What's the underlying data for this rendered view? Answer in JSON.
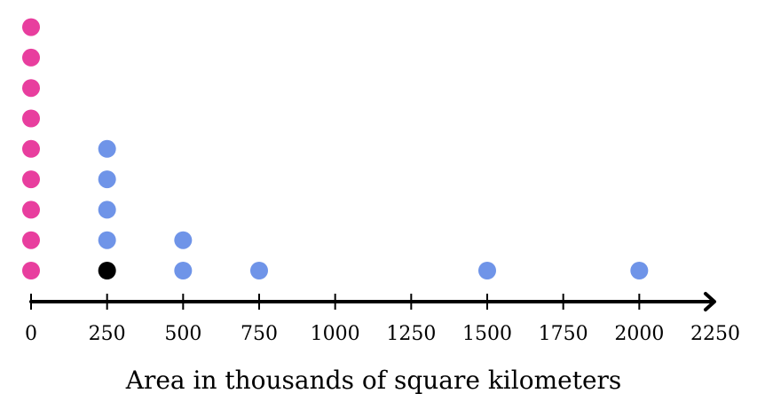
{
  "chart_data": {
    "type": "scatter",
    "subtype": "dot-plot",
    "title": "",
    "xlabel": "Area in thousands of square kilometers",
    "ylabel": "",
    "xlim": [
      0,
      2250
    ],
    "xticks": [
      0,
      250,
      500,
      750,
      1000,
      1250,
      1500,
      1750,
      2000,
      2250
    ],
    "grid": false,
    "axis_arrow": true,
    "colors": {
      "pink": "#e83e9e",
      "blue": "#6f94e8",
      "black": "#000000"
    },
    "points": [
      {
        "x": 0,
        "stack": 1,
        "color": "pink"
      },
      {
        "x": 0,
        "stack": 2,
        "color": "pink"
      },
      {
        "x": 0,
        "stack": 3,
        "color": "pink"
      },
      {
        "x": 0,
        "stack": 4,
        "color": "pink"
      },
      {
        "x": 0,
        "stack": 5,
        "color": "pink"
      },
      {
        "x": 0,
        "stack": 6,
        "color": "pink"
      },
      {
        "x": 0,
        "stack": 7,
        "color": "pink"
      },
      {
        "x": 0,
        "stack": 8,
        "color": "pink"
      },
      {
        "x": 0,
        "stack": 9,
        "color": "pink"
      },
      {
        "x": 250,
        "stack": 1,
        "color": "black"
      },
      {
        "x": 250,
        "stack": 2,
        "color": "blue"
      },
      {
        "x": 250,
        "stack": 3,
        "color": "blue"
      },
      {
        "x": 250,
        "stack": 4,
        "color": "blue"
      },
      {
        "x": 250,
        "stack": 5,
        "color": "blue"
      },
      {
        "x": 500,
        "stack": 1,
        "color": "blue"
      },
      {
        "x": 500,
        "stack": 2,
        "color": "blue"
      },
      {
        "x": 750,
        "stack": 1,
        "color": "blue"
      },
      {
        "x": 1500,
        "stack": 1,
        "color": "blue"
      },
      {
        "x": 2000,
        "stack": 1,
        "color": "blue"
      }
    ]
  }
}
